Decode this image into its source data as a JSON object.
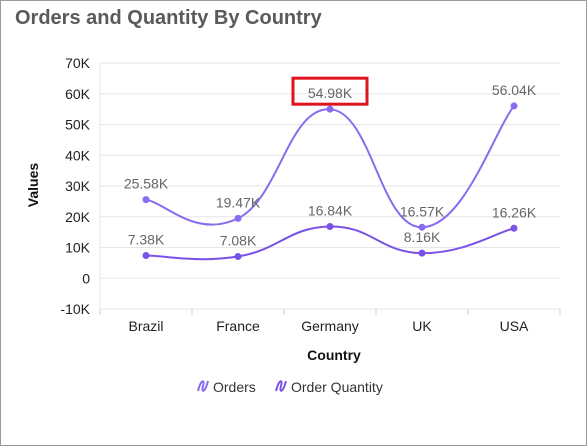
{
  "widget": {
    "title": "Orders and Quantity By Country"
  },
  "colors": {
    "orders": "#8A6BF0",
    "order_quantity": "#7B52E8",
    "grid": "#e6e6e6",
    "highlight": "#e0141e"
  },
  "highlighted_label": "54.98K",
  "chart_data": {
    "type": "line",
    "title": "Orders and Quantity By Country",
    "xlabel": "Country",
    "ylabel": "Values",
    "categories": [
      "Brazil",
      "France",
      "Germany",
      "UK",
      "USA"
    ],
    "ylim": [
      -10000,
      70000
    ],
    "yticks": [
      70000,
      60000,
      50000,
      40000,
      30000,
      20000,
      10000,
      0,
      -10000
    ],
    "ytick_labels": [
      "70K",
      "60K",
      "50K",
      "40K",
      "30K",
      "20K",
      "10K",
      "0",
      "-10K"
    ],
    "grid": true,
    "smooth": true,
    "legend_position": "bottom",
    "series": [
      {
        "name": "Orders",
        "values": [
          25580,
          19470,
          54980,
          16570,
          56040
        ],
        "labels": [
          "25.58K",
          "19.47K",
          "54.98K",
          "16.57K",
          "56.04K"
        ]
      },
      {
        "name": "Order Quantity",
        "values": [
          7380,
          7080,
          16840,
          8160,
          16260
        ],
        "labels": [
          "7.38K",
          "7.08K",
          "16.84K",
          "8.16K",
          "16.26K"
        ]
      }
    ]
  }
}
